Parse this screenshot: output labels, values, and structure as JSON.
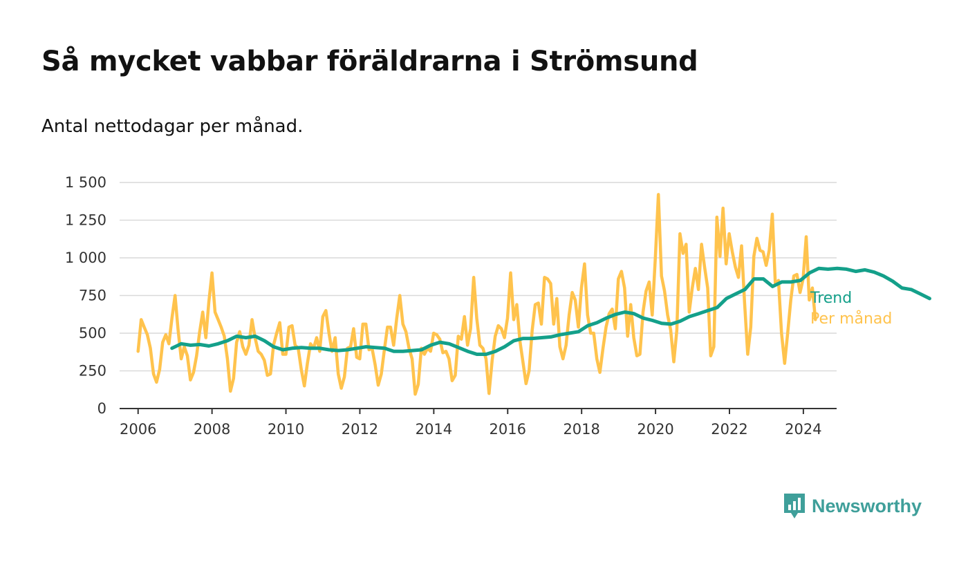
{
  "title": "Så mycket vabbar föräldrarna i Strömsund",
  "subtitle": "Antal nettodagar per månad.",
  "brand": {
    "name": "Newsworthy",
    "icon": "newsworthy-logo-icon",
    "color": "#3f9f9a"
  },
  "colors": {
    "monthly": "#ffc34d",
    "trend": "#14a08a",
    "grid": "#d9d9d9",
    "axis": "#333333"
  },
  "chart_data": {
    "type": "line",
    "title": "Så mycket vabbar föräldrarna i Strömsund",
    "subtitle": "Antal nettodagar per månad.",
    "xlabel": "",
    "ylabel": "",
    "xlim": [
      2005.5,
      2024.9
    ],
    "ylim": [
      0,
      1500
    ],
    "grid": true,
    "legend": "right (inline labels at line ends)",
    "xticks": [
      2006,
      2008,
      2010,
      2012,
      2014,
      2016,
      2018,
      2020,
      2022,
      2024
    ],
    "xtick_labels": [
      "2006",
      "2008",
      "2010",
      "2012",
      "2014",
      "2016",
      "2018",
      "2020",
      "2022",
      "2024"
    ],
    "yticks": [
      0,
      250,
      500,
      750,
      1000,
      1250,
      1500
    ],
    "ytick_labels": [
      "0",
      "250",
      "500",
      "750",
      "1 000",
      "1 250",
      "1 500"
    ],
    "series": [
      {
        "name": "Per månad",
        "color": "#ffc34d",
        "start": 2006.0,
        "step": 0.0833,
        "values": [
          380,
          590,
          540,
          490,
          400,
          230,
          175,
          260,
          440,
          490,
          430,
          600,
          750,
          520,
          330,
          410,
          350,
          190,
          240,
          350,
          510,
          640,
          470,
          710,
          900,
          640,
          590,
          540,
          480,
          330,
          115,
          200,
          440,
          510,
          410,
          360,
          420,
          590,
          470,
          380,
          360,
          320,
          220,
          230,
          420,
          500,
          570,
          360,
          360,
          540,
          550,
          420,
          400,
          260,
          150,
          300,
          430,
          400,
          470,
          380,
          610,
          650,
          500,
          380,
          470,
          230,
          135,
          210,
          400,
          410,
          530,
          340,
          330,
          560,
          560,
          390,
          400,
          290,
          155,
          230,
          390,
          540,
          540,
          420,
          600,
          750,
          560,
          510,
          400,
          330,
          95,
          160,
          400,
          360,
          400,
          380,
          500,
          490,
          460,
          370,
          380,
          330,
          185,
          220,
          480,
          460,
          610,
          420,
          530,
          870,
          600,
          420,
          400,
          330,
          100,
          320,
          480,
          550,
          530,
          470,
          600,
          900,
          590,
          690,
          450,
          310,
          165,
          250,
          520,
          690,
          700,
          560,
          870,
          860,
          830,
          560,
          730,
          410,
          330,
          420,
          620,
          770,
          720,
          540,
          800,
          960,
          620,
          500,
          500,
          330,
          240,
          400,
          540,
          630,
          660,
          530,
          860,
          910,
          800,
          480,
          690,
          470,
          350,
          360,
          640,
          780,
          840,
          620,
          1000,
          1420,
          880,
          780,
          620,
          520,
          310,
          520,
          1160,
          1030,
          1090,
          640,
          800,
          930,
          790,
          1090,
          940,
          800,
          350,
          410,
          1270,
          1010,
          1330,
          960,
          1160,
          1040,
          940,
          870,
          1080,
          700,
          360,
          540,
          1010,
          1130,
          1050,
          1040,
          950,
          1050,
          1290,
          820,
          850,
          500,
          300,
          500,
          720,
          880,
          890,
          770,
          860,
          1140,
          720,
          800,
          590
        ]
      },
      {
        "name": "Trend",
        "color": "#14a08a",
        "start": 2006.917,
        "step": 0.25,
        "values": [
          400,
          430,
          420,
          425,
          415,
          430,
          450,
          480,
          470,
          480,
          450,
          410,
          390,
          400,
          405,
          400,
          400,
          390,
          385,
          390,
          400,
          410,
          405,
          400,
          380,
          380,
          385,
          390,
          420,
          440,
          430,
          405,
          380,
          360,
          360,
          380,
          410,
          450,
          465,
          465,
          470,
          475,
          490,
          500,
          510,
          550,
          570,
          600,
          625,
          640,
          630,
          600,
          585,
          565,
          560,
          580,
          610,
          630,
          650,
          670,
          730,
          760,
          790,
          860,
          860,
          810,
          840,
          840,
          850,
          900,
          930,
          925,
          930,
          925,
          910,
          920,
          905,
          880,
          845,
          800,
          790,
          760,
          730
        ]
      }
    ]
  }
}
